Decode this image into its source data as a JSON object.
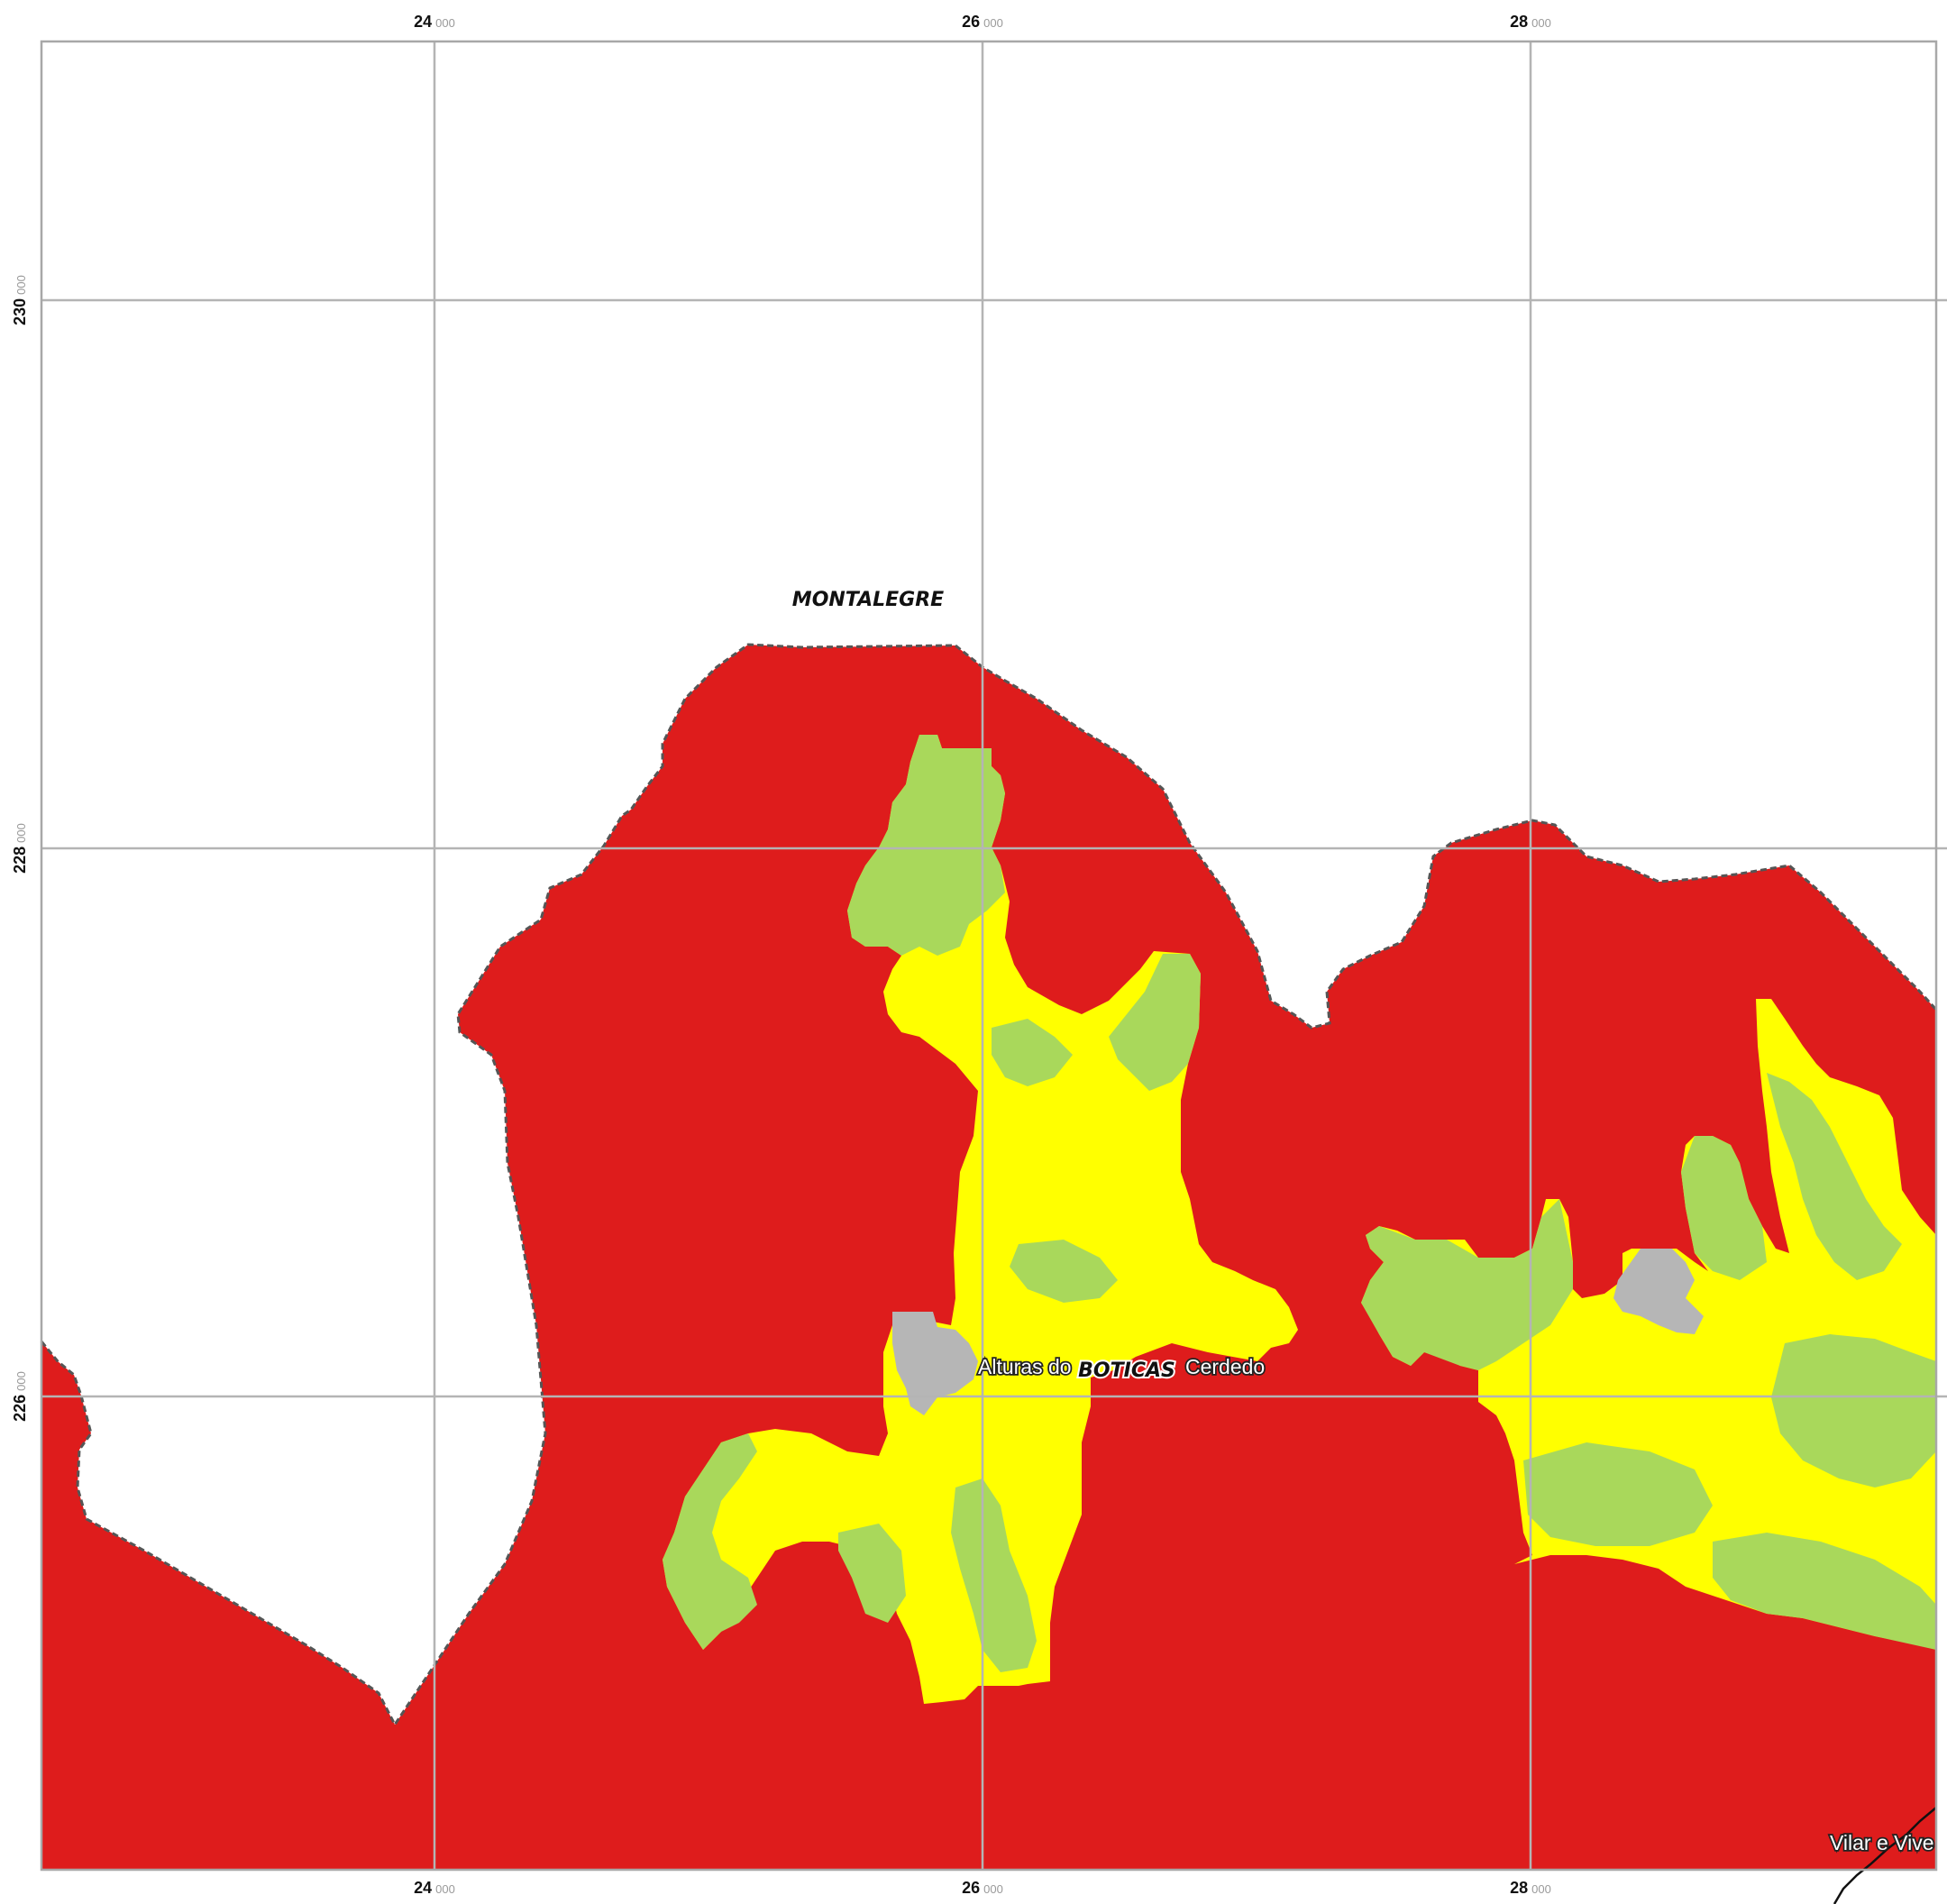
{
  "colors": {
    "background": "#ffffff",
    "red_class": "#de1c1c",
    "yellow_class": "#ffff00",
    "green_class": "#a9d85b",
    "grey_class": "#b6b6b6",
    "grid": "#b4b4b4",
    "boundary": "#555555"
  },
  "axes": {
    "x_ticks": [
      {
        "major": "24",
        "minor": "000"
      },
      {
        "major": "26",
        "minor": "000"
      },
      {
        "major": "28",
        "minor": "000"
      }
    ],
    "y_ticks": [
      {
        "major": "230",
        "minor": "000"
      },
      {
        "major": "228",
        "minor": "000"
      },
      {
        "major": "226",
        "minor": "000"
      }
    ]
  },
  "labels": {
    "municipality_north": "MONTALEGRE",
    "municipality_center": "BOTICAS",
    "place_alturas": "Alturas do",
    "place_cerdedo": "Cerdedo",
    "place_vilar": "Vilar e Vive"
  },
  "icons": [
    "grid-lines",
    "municipal-boundary-dashed",
    "road-line"
  ]
}
